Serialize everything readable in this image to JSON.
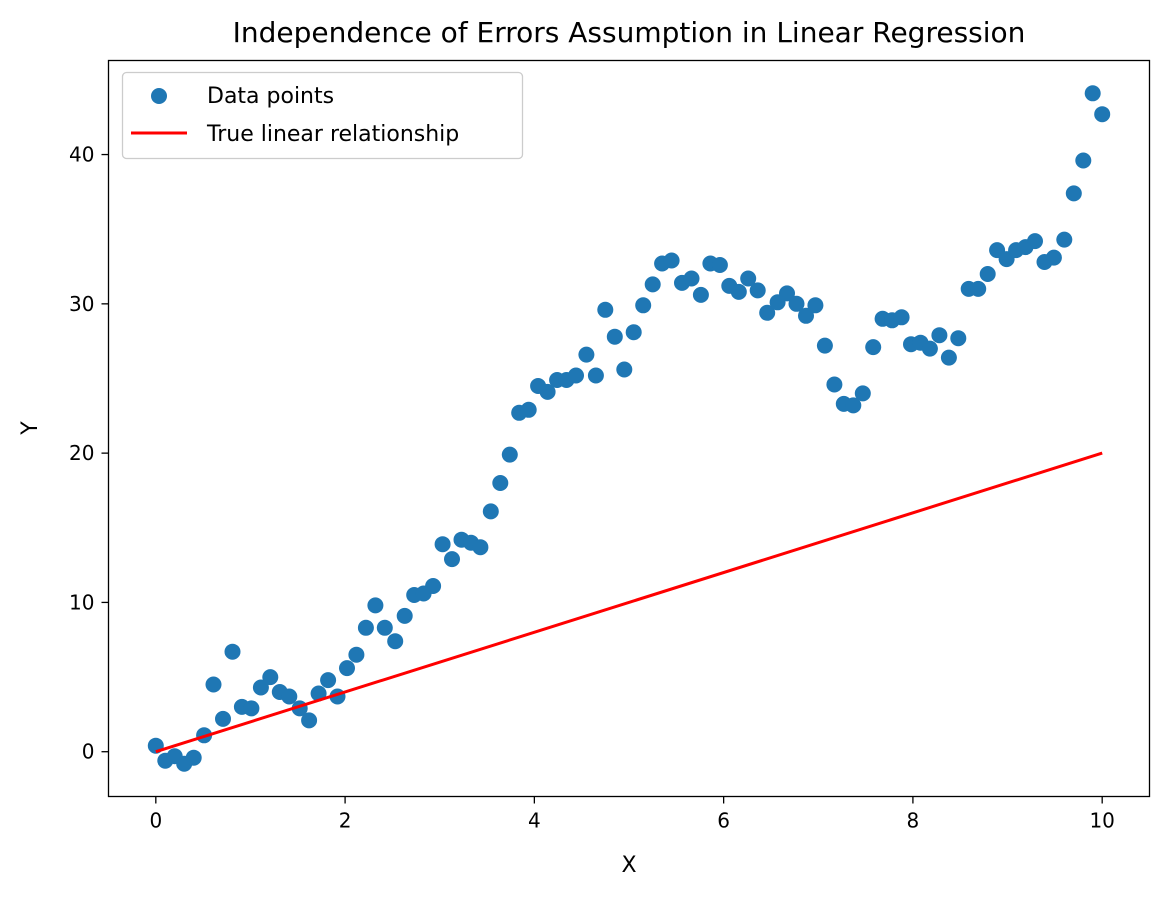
{
  "chart_data": {
    "type": "scatter",
    "title": "Independence of Errors Assumption in Linear Regression",
    "xlabel": "X",
    "ylabel": "Y",
    "xlim": [
      -0.5,
      10.5
    ],
    "ylim": [
      -3,
      46.3
    ],
    "xticks": [
      0,
      2,
      4,
      6,
      8,
      10
    ],
    "yticks": [
      0,
      10,
      20,
      30,
      40
    ],
    "grid": false,
    "legend_position": "upper left",
    "series": [
      {
        "name": "Data points",
        "kind": "scatter",
        "color": "#1f77b4",
        "x": [
          0.0,
          0.1,
          0.2,
          0.3,
          0.4,
          0.51,
          0.61,
          0.71,
          0.81,
          0.91,
          1.01,
          1.11,
          1.21,
          1.31,
          1.41,
          1.52,
          1.62,
          1.72,
          1.82,
          1.92,
          2.02,
          2.12,
          2.22,
          2.32,
          2.42,
          2.53,
          2.63,
          2.73,
          2.83,
          2.93,
          3.03,
          3.13,
          3.23,
          3.33,
          3.43,
          3.54,
          3.64,
          3.74,
          3.84,
          3.94,
          4.04,
          4.14,
          4.24,
          4.34,
          4.44,
          4.55,
          4.65,
          4.75,
          4.85,
          4.95,
          5.05,
          5.15,
          5.25,
          5.35,
          5.45,
          5.56,
          5.66,
          5.76,
          5.86,
          5.96,
          6.06,
          6.16,
          6.26,
          6.36,
          6.46,
          6.57,
          6.67,
          6.77,
          6.87,
          6.97,
          7.07,
          7.17,
          7.27,
          7.37,
          7.47,
          7.58,
          7.68,
          7.78,
          7.88,
          7.98,
          8.08,
          8.18,
          8.28,
          8.38,
          8.48,
          8.59,
          8.69,
          8.79,
          8.89,
          8.99,
          9.09,
          9.19,
          9.29,
          9.39,
          9.49,
          9.6,
          9.7,
          9.8,
          9.9,
          10.0
        ],
        "y": [
          0.4,
          -0.6,
          -0.3,
          -0.8,
          -0.4,
          1.1,
          4.5,
          2.2,
          6.7,
          3.0,
          2.9,
          4.3,
          5.0,
          4.0,
          3.7,
          2.9,
          2.1,
          3.9,
          4.8,
          3.7,
          5.6,
          6.5,
          8.3,
          9.8,
          8.3,
          7.4,
          9.1,
          10.5,
          10.6,
          11.1,
          13.9,
          12.9,
          14.2,
          14.0,
          13.7,
          16.1,
          18.0,
          19.9,
          22.7,
          22.9,
          24.5,
          24.1,
          24.9,
          24.9,
          25.2,
          26.6,
          25.2,
          29.6,
          27.8,
          25.6,
          28.1,
          29.9,
          31.3,
          32.7,
          32.9,
          31.4,
          31.7,
          30.6,
          32.7,
          32.6,
          31.2,
          30.8,
          31.7,
          30.9,
          29.4,
          30.1,
          30.7,
          30.0,
          29.2,
          29.9,
          27.2,
          24.6,
          23.3,
          23.2,
          24.0,
          27.1,
          29.0,
          28.9,
          29.1,
          27.3,
          27.4,
          27.0,
          27.9,
          26.4,
          27.7,
          31.0,
          31.0,
          32.0,
          33.6,
          33.0,
          33.6,
          33.8,
          34.2,
          32.8,
          33.1,
          34.3,
          37.4,
          39.6,
          44.1,
          42.7
        ]
      },
      {
        "name": "True linear relationship",
        "kind": "line",
        "color": "#ff0000",
        "x": [
          0,
          10
        ],
        "y": [
          0,
          20
        ]
      }
    ]
  }
}
